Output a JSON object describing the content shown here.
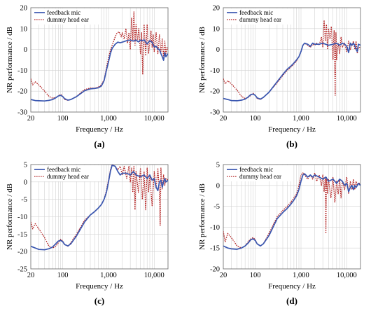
{
  "colors": {
    "feedback": "#3a57b0",
    "dummy": "#b22222",
    "grid": "#d2d2d2",
    "axis": "#000000"
  },
  "chart_data": [
    {
      "type": "line",
      "panel_label": "(a)",
      "xlabel": "Frequency / Hz",
      "ylabel": "NR performance / dB",
      "xscale": "log",
      "xlim": [
        20,
        20000
      ],
      "ylim": [
        -30,
        20
      ],
      "xticks": [
        20,
        100,
        1000,
        10000
      ],
      "xtick_labels": [
        "20",
        "100",
        "1,000",
        "10,000"
      ],
      "yticks": [
        -30,
        -20,
        -10,
        0,
        10,
        20
      ],
      "ytick_labels": [
        "-30",
        "-20",
        "-10",
        "0",
        "10",
        "20"
      ],
      "grid": true,
      "legend_position": "top-left",
      "series": [
        {
          "name": "feedback mic",
          "style": "solid",
          "x": [
            20,
            25,
            30,
            40,
            50,
            60,
            70,
            80,
            90,
            100,
            110,
            130,
            150,
            200,
            300,
            400,
            500,
            600,
            700,
            800,
            900,
            1000,
            1100,
            1200,
            1400,
            1600,
            1800,
            2000,
            2200,
            2500,
            3000,
            3500,
            4000,
            4500,
            5000,
            5500,
            6000,
            7000,
            8000,
            9000,
            10000,
            11000,
            12000,
            13000,
            14000,
            15000,
            16000,
            17000,
            18000,
            20000
          ],
          "y": [
            -24,
            -24.5,
            -24.6,
            -24.7,
            -24.4,
            -24,
            -23.2,
            -22.3,
            -22,
            -22.6,
            -23.6,
            -24.3,
            -24,
            -22.6,
            -19.8,
            -18.9,
            -18.7,
            -18.4,
            -17.5,
            -15,
            -10,
            -6,
            -2,
            0.5,
            2.5,
            3.5,
            3.2,
            3.5,
            3.8,
            4.2,
            4.5,
            4,
            4.5,
            3.6,
            4.5,
            4.2,
            4.6,
            2.6,
            4.2,
            3.4,
            1.2,
            1.5,
            0.2,
            0,
            -2,
            -3.5,
            -5.2,
            -1.5,
            -3.5,
            -2
          ]
        },
        {
          "name": "dummy head ear",
          "style": "dotted",
          "x": [
            20,
            22,
            25,
            30,
            40,
            50,
            60,
            70,
            80,
            90,
            100,
            110,
            130,
            150,
            200,
            300,
            400,
            500,
            600,
            700,
            800,
            900,
            1000,
            1100,
            1200,
            1300,
            1400,
            1500,
            1700,
            1900,
            2000,
            2200,
            2400,
            2600,
            2800,
            3000,
            3200,
            3400,
            3600,
            3800,
            4000,
            4300,
            4600,
            5000,
            5300,
            5600,
            6000,
            6500,
            7000,
            7500,
            8000,
            8500,
            9000,
            9500,
            10000,
            11000,
            12000,
            13000,
            14000,
            15000,
            16000,
            17000,
            18000,
            19000,
            20000
          ],
          "y": [
            -14,
            -17,
            -15.5,
            -17,
            -20,
            -22.5,
            -23.4,
            -23,
            -22.3,
            -21.5,
            -22.5,
            -24,
            -24.4,
            -24,
            -22.5,
            -19.2,
            -18.5,
            -18.5,
            -18,
            -17,
            -14.5,
            -9,
            -4,
            -0.5,
            2,
            4,
            6,
            7.5,
            8.5,
            6,
            8,
            5,
            10,
            3,
            8,
            0,
            15,
            4,
            18,
            2,
            12,
            4,
            10,
            -2,
            8,
            -12,
            12,
            -3,
            12,
            -2,
            3,
            9,
            1,
            7,
            -1,
            8,
            -2,
            7,
            -1,
            5,
            -4,
            4,
            -2,
            1,
            0
          ]
        }
      ]
    },
    {
      "type": "line",
      "panel_label": "(b)",
      "xlabel": "Frequency / Hz",
      "ylabel": "NR performance / dB",
      "xscale": "log",
      "xlim": [
        20,
        20000
      ],
      "ylim": [
        -30,
        20
      ],
      "xticks": [
        20,
        100,
        1000,
        10000
      ],
      "xtick_labels": [
        "20",
        "100",
        "1,000",
        "10,000"
      ],
      "yticks": [
        -30,
        -20,
        -10,
        0,
        10,
        20
      ],
      "ytick_labels": [
        "-30",
        "-20",
        "-10",
        "0",
        "10",
        "20"
      ],
      "grid": true,
      "legend_position": "top-left",
      "series": [
        {
          "name": "feedback mic",
          "style": "solid",
          "x": [
            20,
            25,
            30,
            40,
            50,
            60,
            70,
            80,
            90,
            100,
            110,
            130,
            150,
            200,
            300,
            400,
            500,
            600,
            700,
            800,
            900,
            1000,
            1100,
            1200,
            1400,
            1600,
            1800,
            2000,
            2500,
            3000,
            4000,
            5000,
            6000,
            7000,
            8000,
            9000,
            10000,
            11000,
            12000,
            13000,
            14000,
            15000,
            16000,
            17000,
            18000,
            20000
          ],
          "y": [
            -23.5,
            -24,
            -24.5,
            -24.6,
            -24.3,
            -23.8,
            -22.8,
            -21.6,
            -21.4,
            -22,
            -23.2,
            -23.8,
            -23,
            -20.5,
            -15.5,
            -12,
            -9.5,
            -8,
            -6.5,
            -5,
            -3.5,
            -1,
            2,
            3,
            2.5,
            1.5,
            3,
            2.5,
            2.5,
            3,
            2,
            2.5,
            3,
            2,
            3,
            2.5,
            1.5,
            -1.5,
            3,
            2,
            3,
            2,
            0,
            -1,
            2.5,
            2
          ]
        },
        {
          "name": "dummy head ear",
          "style": "dotted",
          "x": [
            20,
            22,
            25,
            30,
            40,
            50,
            60,
            70,
            80,
            90,
            100,
            110,
            130,
            150,
            200,
            300,
            400,
            500,
            600,
            700,
            800,
            900,
            1000,
            1100,
            1200,
            1400,
            1600,
            1800,
            2000,
            2200,
            2500,
            2800,
            3000,
            3200,
            3400,
            3600,
            3800,
            4000,
            4300,
            4600,
            5000,
            5300,
            5600,
            5800,
            6000,
            6500,
            7000,
            7500,
            8000,
            9000,
            10000,
            11000,
            12000,
            13000,
            14000,
            15000,
            16000,
            17000,
            18000,
            20000
          ],
          "y": [
            -14,
            -16.5,
            -15,
            -16.5,
            -19.5,
            -22.5,
            -23.5,
            -23,
            -22,
            -21,
            -22,
            -23.5,
            -24,
            -23,
            -20.5,
            -16,
            -12.5,
            -10,
            -8.5,
            -7,
            -5.5,
            -3.5,
            -1,
            2,
            3,
            2,
            1,
            2.5,
            2,
            3,
            2,
            6,
            1,
            14,
            4,
            12,
            0,
            10,
            5,
            11,
            -5,
            9,
            -22,
            8,
            -5,
            3,
            -2,
            6,
            1,
            3,
            -1,
            4,
            0,
            2,
            4,
            0,
            4,
            -2,
            1,
            1
          ]
        }
      ]
    },
    {
      "type": "line",
      "panel_label": "(c)",
      "xlabel": "Frequency / Hz",
      "ylabel": "NR performance / dB",
      "xscale": "log",
      "xlim": [
        20,
        20000
      ],
      "ylim": [
        -25,
        5
      ],
      "xticks": [
        20,
        100,
        1000,
        10000
      ],
      "xtick_labels": [
        "20",
        "100",
        "1,000",
        "10,000"
      ],
      "yticks": [
        -25,
        -20,
        -15,
        -10,
        -5,
        0,
        5
      ],
      "ytick_labels": [
        "-25",
        "-20",
        "-15",
        "-10",
        "-5",
        "0",
        "5"
      ],
      "grid": true,
      "legend_position": "top-left",
      "series": [
        {
          "name": "feedback mic",
          "style": "solid",
          "x": [
            20,
            25,
            30,
            40,
            50,
            60,
            70,
            80,
            90,
            100,
            110,
            130,
            150,
            200,
            300,
            400,
            500,
            600,
            700,
            800,
            900,
            1000,
            1100,
            1200,
            1400,
            1600,
            1800,
            2000,
            2500,
            3000,
            3500,
            4000,
            5000,
            6000,
            7000,
            8000,
            9000,
            10000,
            11000,
            12000,
            13000,
            14000,
            15000,
            16000,
            17000,
            18000,
            20000
          ],
          "y": [
            -18.5,
            -19,
            -19.4,
            -19.5,
            -19.2,
            -18.7,
            -17.8,
            -17,
            -16.8,
            -17.2,
            -18,
            -18.4,
            -17.8,
            -15.5,
            -11.5,
            -9.5,
            -8.5,
            -7.5,
            -6.5,
            -5,
            -3,
            0,
            3,
            4.8,
            4.5,
            3,
            2,
            2.5,
            2.5,
            2,
            3,
            2,
            1.5,
            2,
            1,
            2,
            0.5,
            1,
            -1.5,
            -2.5,
            0,
            0.5,
            -1.5,
            0,
            1,
            0,
            0.5
          ]
        },
        {
          "name": "dummy head ear",
          "style": "dotted",
          "x": [
            20,
            22,
            25,
            30,
            40,
            50,
            60,
            70,
            80,
            90,
            100,
            110,
            130,
            150,
            200,
            300,
            400,
            500,
            600,
            700,
            800,
            900,
            1000,
            1100,
            1200,
            1400,
            1600,
            1800,
            2000,
            2200,
            2500,
            2800,
            3000,
            3200,
            3400,
            3600,
            3800,
            4000,
            4500,
            5000,
            5500,
            6000,
            6500,
            7000,
            7500,
            8000,
            9000,
            10000,
            11000,
            12000,
            13000,
            13500,
            14000,
            15000,
            16000,
            17000,
            18000,
            20000
          ],
          "y": [
            -11.5,
            -13.5,
            -12,
            -13.5,
            -16,
            -18.5,
            -19,
            -18.5,
            -17.5,
            -16.5,
            -17,
            -18,
            -18.5,
            -17.5,
            -15,
            -11,
            -9.5,
            -8.5,
            -7.5,
            -6.5,
            -5,
            -2.5,
            0.5,
            3.5,
            5,
            4.5,
            3.5,
            4.5,
            2,
            4.5,
            1,
            4.5,
            0,
            4,
            -3,
            4.5,
            -8,
            3,
            -3,
            4,
            -5,
            3,
            -8,
            4,
            -3,
            2,
            -7,
            3,
            -2,
            4,
            -3,
            -12.5,
            4,
            -2,
            2,
            -1,
            1,
            0.5
          ]
        }
      ]
    },
    {
      "type": "line",
      "panel_label": "(d)",
      "xlabel": "Frequency / Hz",
      "ylabel": "NR performance / dB",
      "xscale": "log",
      "xlim": [
        20,
        20000
      ],
      "ylim": [
        -20,
        5
      ],
      "xticks": [
        20,
        100,
        1000,
        10000
      ],
      "xtick_labels": [
        "20",
        "100",
        "1,000",
        "10,000"
      ],
      "yticks": [
        -20,
        -15,
        -10,
        -5,
        0,
        5
      ],
      "ytick_labels": [
        "-20",
        "-15",
        "-10",
        "-5",
        "0",
        "5"
      ],
      "grid": true,
      "legend_position": "top-left",
      "series": [
        {
          "name": "feedback mic",
          "style": "solid",
          "x": [
            20,
            25,
            30,
            40,
            50,
            60,
            70,
            80,
            90,
            100,
            110,
            130,
            150,
            200,
            300,
            400,
            500,
            600,
            700,
            800,
            900,
            1000,
            1100,
            1200,
            1400,
            1600,
            1800,
            2000,
            2500,
            3000,
            3500,
            4000,
            5000,
            6000,
            7000,
            8000,
            9000,
            10000,
            11000,
            12000,
            13000,
            14000,
            15000,
            16000,
            17000,
            18000,
            20000
          ],
          "y": [
            -14.5,
            -15,
            -15.2,
            -15.3,
            -15,
            -14.5,
            -13.8,
            -13,
            -12.8,
            -13.2,
            -14,
            -14.5,
            -14,
            -12,
            -8,
            -6.5,
            -5.5,
            -4.5,
            -3.5,
            -2.5,
            -1,
            1,
            2.5,
            2.8,
            2,
            2.5,
            2,
            2.5,
            2,
            1.5,
            2,
            1,
            1.5,
            0.5,
            1.5,
            1,
            0,
            0.5,
            -1.5,
            -0.5,
            0,
            -1,
            0,
            -0.5,
            0,
            0.5,
            0
          ]
        },
        {
          "name": "dummy head ear",
          "style": "dotted",
          "x": [
            20,
            22,
            25,
            30,
            40,
            50,
            60,
            70,
            80,
            90,
            100,
            110,
            130,
            150,
            200,
            300,
            400,
            500,
            600,
            700,
            800,
            900,
            1000,
            1100,
            1200,
            1400,
            1600,
            1800,
            2000,
            2200,
            2500,
            2800,
            3000,
            3200,
            3400,
            3500,
            3600,
            3800,
            4000,
            4500,
            5000,
            5500,
            6000,
            6500,
            7000,
            7500,
            8000,
            9000,
            10000,
            11000,
            12000,
            13000,
            14000,
            15000,
            16000,
            17000,
            18000,
            20000
          ],
          "y": [
            -11,
            -13.5,
            -11.5,
            -12.5,
            -14.5,
            -15,
            -14.5,
            -13.5,
            -12.8,
            -12.5,
            -13,
            -14,
            -14.5,
            -14,
            -11.5,
            -7.5,
            -6,
            -5,
            -4,
            -3,
            -2,
            0,
            2.5,
            3,
            2.5,
            1.5,
            2.5,
            1.5,
            3,
            1,
            2.5,
            0,
            2.5,
            -1.5,
            2,
            -11.5,
            2,
            -2,
            1.5,
            -3,
            2,
            -4,
            1,
            -2,
            1.5,
            -3,
            1,
            -1,
            2,
            -2,
            1,
            -1,
            1.5,
            -1,
            1,
            0,
            0.5,
            0.5
          ]
        }
      ]
    }
  ]
}
